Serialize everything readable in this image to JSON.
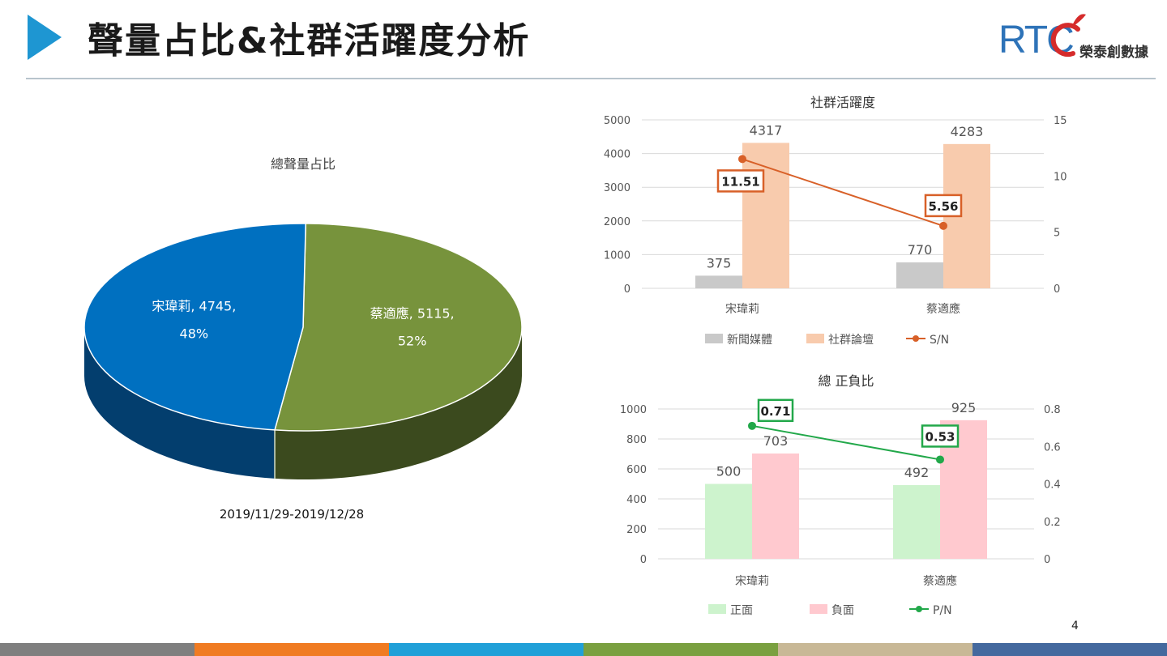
{
  "header": {
    "title": "聲量占比&社群活躍度分析",
    "accent": "#1e96d2"
  },
  "logo": {
    "letters": "RTC",
    "name": "榮泰創數據"
  },
  "page_number": "4",
  "footer_colors": [
    "#7f7f7f",
    "#f07b22",
    "#20a0d8",
    "#7aa040",
    "#c8b896",
    "#44699e"
  ],
  "chart_data": [
    {
      "id": "pie",
      "type": "pie",
      "title": "總聲量占比",
      "caption": "2019/11/29-2019/12/28",
      "slices": [
        {
          "name": "蔡適應",
          "value": 5115,
          "percent": "52%",
          "label": "蔡適應, 5115,",
          "color": "#77933c",
          "dark": "#3b4a1e"
        },
        {
          "name": "宋瑋莉",
          "value": 4745,
          "percent": "48%",
          "label": "宋瑋莉, 4745,",
          "color": "#0070c0",
          "dark": "#033e6e"
        }
      ]
    },
    {
      "id": "activity",
      "type": "bar",
      "title": "社群活躍度",
      "categories": [
        "宋瑋莉",
        "蔡適應"
      ],
      "ylim": [
        0,
        5000
      ],
      "yticks": [
        "0",
        "1000",
        "2000",
        "3000",
        "4000",
        "5000"
      ],
      "y2lim": [
        0,
        15
      ],
      "y2ticks": [
        "0",
        "5",
        "10",
        "15"
      ],
      "series": [
        {
          "name": "新聞媒體",
          "values": [
            375,
            770
          ],
          "labels": [
            "375",
            "770"
          ],
          "color": "#c9c9c9"
        },
        {
          "name": "社群論壇",
          "values": [
            4317,
            4283
          ],
          "labels": [
            "4317",
            "4283"
          ],
          "color": "#f8cbad"
        }
      ],
      "line": {
        "name": "S/N",
        "values": [
          11.51,
          5.56
        ],
        "labels": [
          "11.51",
          "5.56"
        ],
        "color": "#d86028"
      }
    },
    {
      "id": "sentiment",
      "type": "bar",
      "title": "總 正負比",
      "categories": [
        "宋瑋莉",
        "蔡適應"
      ],
      "ylim": [
        0,
        1000
      ],
      "yticks": [
        "0",
        "200",
        "400",
        "600",
        "800",
        "1000"
      ],
      "y2lim": [
        0,
        0.8
      ],
      "y2ticks": [
        "0",
        "0.2",
        "0.4",
        "0.6",
        "0.8"
      ],
      "series": [
        {
          "name": "正面",
          "values": [
            500,
            492
          ],
          "labels": [
            "500",
            "492"
          ],
          "color": "#cdf3cd"
        },
        {
          "name": "負面",
          "values": [
            703,
            925
          ],
          "labels": [
            "703",
            "925"
          ],
          "color": "#ffc9cf"
        }
      ],
      "line": {
        "name": "P/N",
        "values": [
          0.71,
          0.53
        ],
        "labels": [
          "0.71",
          "0.53"
        ],
        "color": "#22a84a"
      }
    }
  ]
}
